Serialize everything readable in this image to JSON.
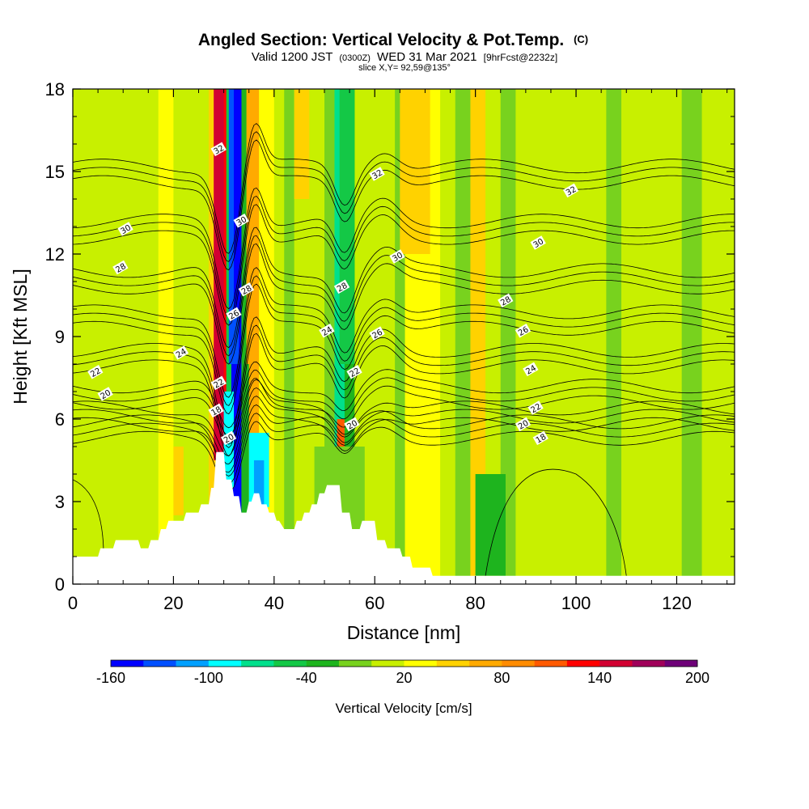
{
  "chart_data": {
    "type": "heatmap",
    "title": "Angled Section: Vertical Velocity & Pot.Temp.",
    "title_unit": "(C)",
    "subtitle_parts": [
      "Valid 1200 JST",
      "(0300Z)",
      "WED 31 Mar 2021",
      "[9hrFcst@2232z]"
    ],
    "subtitle2": "slice X,Y= 92,59@135°",
    "xlabel": "Distance [nm]",
    "ylabel": "Height [Kft MSL]",
    "xlim": [
      0,
      131.5
    ],
    "ylim": [
      0,
      18
    ],
    "x_ticks": [
      "0",
      "20",
      "40",
      "60",
      "80",
      "100",
      "120"
    ],
    "x_tick_values": [
      0,
      20,
      40,
      60,
      80,
      100,
      120
    ],
    "y_ticks": [
      "0",
      "3",
      "6",
      "9",
      "12",
      "15",
      "18"
    ],
    "y_tick_values": [
      0,
      3,
      6,
      9,
      12,
      15,
      18
    ],
    "colorbar": {
      "label": "Vertical Velocity [cm/s]",
      "min": -160,
      "max": 200,
      "step": 20,
      "tick_labels": [
        "-160",
        "-100",
        "-40",
        "20",
        "80",
        "140",
        "200"
      ],
      "tick_values": [
        -160,
        -100,
        -40,
        20,
        80,
        140,
        200
      ],
      "colors": [
        "#0000ff",
        "#0050ff",
        "#00a0ff",
        "#00ffff",
        "#00e08c",
        "#14c846",
        "#1eb41e",
        "#78d21e",
        "#c8f000",
        "#ffff00",
        "#ffd200",
        "#ffaa00",
        "#ff8c00",
        "#ff5a00",
        "#ff0000",
        "#d20032",
        "#a0005a",
        "#6e0078"
      ]
    },
    "terrain_profile": [
      [
        0,
        1
      ],
      [
        5,
        1
      ],
      [
        5.5,
        1.3
      ],
      [
        8,
        1.3
      ],
      [
        8.5,
        1.6
      ],
      [
        13,
        1.6
      ],
      [
        13.5,
        1.3
      ],
      [
        15,
        1.3
      ],
      [
        15.5,
        1.6
      ],
      [
        17,
        1.6
      ],
      [
        17.5,
        2
      ],
      [
        18.5,
        2
      ],
      [
        19,
        2.3
      ],
      [
        22,
        2.3
      ],
      [
        22.5,
        2.6
      ],
      [
        25,
        2.6
      ],
      [
        25.5,
        2.9
      ],
      [
        27,
        2.9
      ],
      [
        27.5,
        3.5
      ],
      [
        28,
        3.5
      ],
      [
        28.5,
        4.8
      ],
      [
        30,
        4.8
      ],
      [
        30.5,
        3.8
      ],
      [
        31.5,
        3.8
      ],
      [
        32,
        3.2
      ],
      [
        33,
        3.2
      ],
      [
        33.5,
        2.6
      ],
      [
        34.5,
        2.6
      ],
      [
        35,
        3.0
      ],
      [
        35.5,
        3.0
      ],
      [
        36,
        3.3
      ],
      [
        37,
        3.3
      ],
      [
        37.5,
        2.9
      ],
      [
        38.5,
        2.9
      ],
      [
        39,
        2.6
      ],
      [
        40,
        2.6
      ],
      [
        40.5,
        2.3
      ],
      [
        41,
        2.3
      ],
      [
        42,
        2.0
      ],
      [
        44,
        2.0
      ],
      [
        44.5,
        2.3
      ],
      [
        45.5,
        2.3
      ],
      [
        46,
        2.6
      ],
      [
        47,
        2.6
      ],
      [
        47.5,
        2.9
      ],
      [
        48.5,
        2.9
      ],
      [
        49,
        3.3
      ],
      [
        50,
        3.3
      ],
      [
        50.5,
        3.6
      ],
      [
        53,
        3.6
      ],
      [
        53.5,
        2.6
      ],
      [
        55,
        2.6
      ],
      [
        55.5,
        2.0
      ],
      [
        57,
        2.0
      ],
      [
        57.5,
        2.3
      ],
      [
        60,
        2.3
      ],
      [
        60.5,
        1.6
      ],
      [
        62,
        1.6
      ],
      [
        62.5,
        1.3
      ],
      [
        65,
        1.3
      ],
      [
        65.5,
        1.0
      ],
      [
        67,
        1.0
      ],
      [
        67.5,
        0.6
      ],
      [
        71,
        0.6
      ],
      [
        71.5,
        0.3
      ],
      [
        131.5,
        0.3
      ]
    ],
    "w_columns": [
      {
        "x": [
          0,
          2
        ],
        "w": 0
      },
      {
        "x": [
          2,
          6
        ],
        "w": 10
      },
      {
        "x": [
          6,
          8
        ],
        "w": 0
      },
      {
        "x": [
          8,
          12
        ],
        "w": 10
      },
      {
        "x": [
          12,
          14
        ],
        "w": 0
      },
      {
        "x": [
          14,
          17
        ],
        "w": 10
      },
      {
        "x": [
          17,
          20
        ],
        "w": 30
      },
      {
        "x": [
          20,
          24
        ],
        "w": 10
      },
      {
        "x": [
          24,
          27
        ],
        "w": 0
      },
      {
        "x": [
          27,
          29
        ],
        "w": 40
      },
      {
        "x": [
          29,
          30.5
        ],
        "w": 130
      },
      {
        "x": [
          30.5,
          31.5
        ],
        "w": -60
      },
      {
        "x": [
          31.5,
          33.5
        ],
        "w": -150
      },
      {
        "x": [
          33.5,
          35
        ],
        "w": -40
      },
      {
        "x": [
          35,
          37
        ],
        "w": 70
      },
      {
        "x": [
          37,
          40
        ],
        "w": 30
      },
      {
        "x": [
          40,
          42
        ],
        "w": 0
      },
      {
        "x": [
          42,
          44
        ],
        "w": -10
      },
      {
        "x": [
          44,
          47
        ],
        "w": 10
      },
      {
        "x": [
          47,
          50
        ],
        "w": 0
      },
      {
        "x": [
          50,
          52
        ],
        "w": -20
      },
      {
        "x": [
          52,
          54
        ],
        "w": -80
      },
      {
        "x": [
          54,
          56
        ],
        "w": -40
      },
      {
        "x": [
          56,
          58
        ],
        "w": 10
      },
      {
        "x": [
          58,
          61
        ],
        "w": 0
      },
      {
        "x": [
          61,
          64
        ],
        "w": 10
      },
      {
        "x": [
          64,
          66
        ],
        "w": -20
      },
      {
        "x": [
          66,
          69
        ],
        "w": 20
      },
      {
        "x": [
          69,
          73
        ],
        "w": 30
      },
      {
        "x": [
          73,
          76
        ],
        "w": 10
      },
      {
        "x": [
          76,
          79
        ],
        "w": -10
      },
      {
        "x": [
          79,
          82
        ],
        "w": 40
      },
      {
        "x": [
          82,
          85
        ],
        "w": 10
      },
      {
        "x": [
          85,
          88
        ],
        "w": -10
      },
      {
        "x": [
          88,
          92
        ],
        "w": 10
      },
      {
        "x": [
          92,
          95
        ],
        "w": 0
      },
      {
        "x": [
          95,
          99
        ],
        "w": 10
      },
      {
        "x": [
          99,
          102
        ],
        "w": 0
      },
      {
        "x": [
          102,
          106
        ],
        "w": 10
      },
      {
        "x": [
          106,
          109
        ],
        "w": -10
      },
      {
        "x": [
          109,
          113
        ],
        "w": 10
      },
      {
        "x": [
          113,
          117
        ],
        "w": 0
      },
      {
        "x": [
          117,
          121
        ],
        "w": 10
      },
      {
        "x": [
          121,
          125
        ],
        "w": -10
      },
      {
        "x": [
          125,
          131.5
        ],
        "w": 10
      }
    ],
    "w_cells": [
      {
        "x": [
          28,
          30
        ],
        "y": [
          4.5,
          18
        ],
        "w": 150
      },
      {
        "x": [
          31,
          33
        ],
        "y": [
          8,
          18
        ],
        "w": -140
      },
      {
        "x": [
          32,
          33.5
        ],
        "y": [
          10,
          18
        ],
        "w": -160
      },
      {
        "x": [
          30,
          32
        ],
        "y": [
          3.5,
          7
        ],
        "w": -100
      },
      {
        "x": [
          35,
          39
        ],
        "y": [
          2.8,
          5.5
        ],
        "w": -90
      },
      {
        "x": [
          36,
          38
        ],
        "y": [
          2.9,
          4.5
        ],
        "w": -110
      },
      {
        "x": [
          34.5,
          36.5
        ],
        "y": [
          8,
          18
        ],
        "w": 70
      },
      {
        "x": [
          52.5,
          54
        ],
        "y": [
          3.5,
          6
        ],
        "w": 110
      },
      {
        "x": [
          53,
          56
        ],
        "y": [
          8,
          18
        ],
        "w": -60
      },
      {
        "x": [
          48,
          58
        ],
        "y": [
          0.5,
          5
        ],
        "w": -20
      },
      {
        "x": [
          80,
          86
        ],
        "y": [
          0.3,
          4
        ],
        "w": -30
      },
      {
        "x": [
          65,
          71
        ],
        "y": [
          12,
          18
        ],
        "w": 50
      },
      {
        "x": [
          44,
          47
        ],
        "y": [
          14,
          18
        ],
        "w": 40
      },
      {
        "x": [
          20,
          22
        ],
        "y": [
          2.5,
          5
        ],
        "w": 40
      }
    ],
    "theta_levels": [
      18,
      20,
      22,
      24,
      26,
      28,
      30,
      32
    ],
    "contour_labels": [
      {
        "text": "32",
        "x": 29,
        "y": 15.8
      },
      {
        "text": "30",
        "x": 33.5,
        "y": 13.2
      },
      {
        "text": "28",
        "x": 34.5,
        "y": 10.7
      },
      {
        "text": "26",
        "x": 32,
        "y": 9.8
      },
      {
        "text": "22",
        "x": 29,
        "y": 7.3
      },
      {
        "text": "18",
        "x": 28.5,
        "y": 6.3
      },
      {
        "text": "20",
        "x": 31,
        "y": 5.3
      },
      {
        "text": "30",
        "x": 10.5,
        "y": 12.9
      },
      {
        "text": "28",
        "x": 9.5,
        "y": 11.5
      },
      {
        "text": "24",
        "x": 21.5,
        "y": 8.4
      },
      {
        "text": "22",
        "x": 4.5,
        "y": 7.7
      },
      {
        "text": "20",
        "x": 6.5,
        "y": 6.9
      },
      {
        "text": "32",
        "x": 60.5,
        "y": 14.9
      },
      {
        "text": "30",
        "x": 64.5,
        "y": 11.9
      },
      {
        "text": "28",
        "x": 53.5,
        "y": 10.8
      },
      {
        "text": "24",
        "x": 50.5,
        "y": 9.2
      },
      {
        "text": "26",
        "x": 60.5,
        "y": 9.1
      },
      {
        "text": "22",
        "x": 56,
        "y": 7.7
      },
      {
        "text": "20",
        "x": 55.5,
        "y": 5.8
      },
      {
        "text": "32",
        "x": 99,
        "y": 14.3
      },
      {
        "text": "30",
        "x": 92.5,
        "y": 12.4
      },
      {
        "text": "28",
        "x": 86,
        "y": 10.3
      },
      {
        "text": "26",
        "x": 89.5,
        "y": 9.2
      },
      {
        "text": "24",
        "x": 91,
        "y": 7.8
      },
      {
        "text": "22",
        "x": 92,
        "y": 6.4
      },
      {
        "text": "20",
        "x": 89.5,
        "y": 5.8
      },
      {
        "text": "18",
        "x": 93,
        "y": 5.3
      }
    ]
  }
}
